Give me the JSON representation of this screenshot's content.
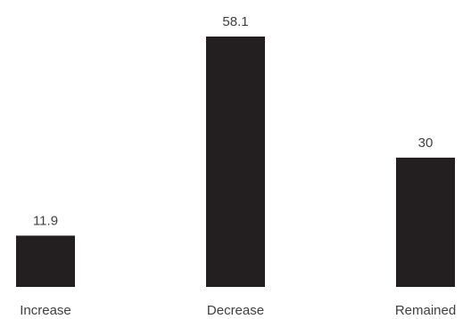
{
  "chart_data": {
    "type": "bar",
    "categories": [
      "Increase",
      "Decrease",
      "Remained"
    ],
    "values": [
      11.9,
      58.1,
      30
    ],
    "value_labels": [
      "11.9",
      "58.1",
      "30"
    ],
    "title": "",
    "xlabel": "",
    "ylabel": "",
    "ylim": [
      0,
      58.1
    ],
    "grid": false,
    "bar_color": "#231f20",
    "label_color": "#404040"
  }
}
